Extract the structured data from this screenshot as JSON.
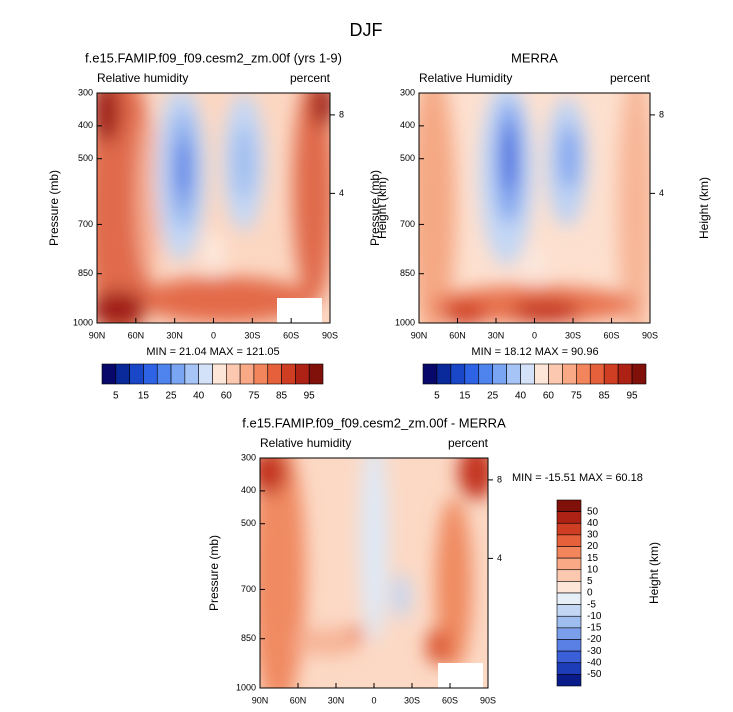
{
  "title": "DJF",
  "chart_data": [
    {
      "type": "contour",
      "title": "f.e15.FAMIP.f09_f09.cesm2_zm.00f (yrs 1-9)",
      "left_label": "Relative humidity",
      "right_label": "percent",
      "ylabel": "Pressure (mb)",
      "y2label": "Height (km)",
      "annotation": "MIN = 21.04  MAX = 121.05",
      "xlim": [
        90,
        -90
      ],
      "xticks": [
        {
          "value": 90,
          "label": "90N"
        },
        {
          "value": 60,
          "label": "60N"
        },
        {
          "value": 30,
          "label": "30N"
        },
        0,
        {
          "value": -30,
          "label": "30S"
        },
        {
          "value": -60,
          "label": "60S"
        },
        {
          "value": -90,
          "label": "90S"
        }
      ],
      "ylim": [
        1000,
        300
      ],
      "yticks": [
        300,
        400,
        500,
        700,
        850,
        1000
      ],
      "y2lim": [
        0,
        9.6
      ],
      "y2ticks": [
        8,
        4
      ],
      "colorbar_ticks": [
        5,
        15,
        25,
        40,
        60,
        75,
        85,
        95
      ],
      "colorbar_colors": [
        "#08086b",
        "#0a2a9c",
        "#1a46c8",
        "#2e63e6",
        "#4f84ee",
        "#7aa5f2",
        "#a6c4f5",
        "#d3e2f8",
        "#fde6d8",
        "#fcc9b0",
        "#f9a985",
        "#f3855c",
        "#e6603b",
        "#cf3d23",
        "#ad2214",
        "#80100a"
      ]
    },
    {
      "type": "contour",
      "title": "MERRA",
      "left_label": "Relative Humidity",
      "right_label": "percent",
      "ylabel": "Pressure (mb)",
      "y2label": "Height (km)",
      "annotation": "MIN = 18.12  MAX = 90.96",
      "xlim": [
        90,
        -90
      ],
      "xticks": [
        {
          "value": 90,
          "label": "90N"
        },
        {
          "value": 60,
          "label": "60N"
        },
        {
          "value": 30,
          "label": "30N"
        },
        0,
        {
          "value": -30,
          "label": "30S"
        },
        {
          "value": -60,
          "label": "60S"
        },
        {
          "value": -90,
          "label": "90S"
        }
      ],
      "ylim": [
        1000,
        300
      ],
      "yticks": [
        300,
        400,
        500,
        700,
        850,
        1000
      ],
      "y2lim": [
        0,
        9.6
      ],
      "y2ticks": [
        8,
        4
      ],
      "colorbar_ticks": [
        5,
        15,
        25,
        40,
        60,
        75,
        85,
        95
      ],
      "colorbar_colors": [
        "#08086b",
        "#0a2a9c",
        "#1a46c8",
        "#2e63e6",
        "#4f84ee",
        "#7aa5f2",
        "#a6c4f5",
        "#d3e2f8",
        "#fde6d8",
        "#fcc9b0",
        "#f9a985",
        "#f3855c",
        "#e6603b",
        "#cf3d23",
        "#ad2214",
        "#80100a"
      ]
    },
    {
      "type": "contour",
      "title": "f.e15.FAMIP.f09_f09.cesm2_zm.00f - MERRA",
      "left_label": "Relative humidity",
      "right_label": "percent",
      "ylabel": "Pressure (mb)",
      "y2label": "Height (km)",
      "annotation": "MIN = -15.51  MAX = 60.18",
      "xlim": [
        90,
        -90
      ],
      "xticks": [
        {
          "value": 90,
          "label": "90N"
        },
        {
          "value": 60,
          "label": "60N"
        },
        {
          "value": 30,
          "label": "30N"
        },
        0,
        {
          "value": -30,
          "label": "30S"
        },
        {
          "value": -60,
          "label": "60S"
        },
        {
          "value": -90,
          "label": "90S"
        }
      ],
      "ylim": [
        1000,
        300
      ],
      "yticks": [
        300,
        400,
        500,
        700,
        850,
        1000
      ],
      "y2lim": [
        0,
        9.6
      ],
      "y2ticks": [
        8,
        4
      ],
      "colorbar_ticks": [
        50,
        40,
        30,
        20,
        15,
        10,
        5,
        0,
        -5,
        -10,
        -15,
        -20,
        -30,
        -40,
        -50
      ],
      "colorbar_colors": [
        "#80100a",
        "#ad2214",
        "#cf3d23",
        "#e6603b",
        "#f3855c",
        "#f9a985",
        "#fcc9b0",
        "#fde6d8",
        "#e6eef8",
        "#c3d6f3",
        "#a0bdf0",
        "#7c9fec",
        "#5a80e6",
        "#3a5fd8",
        "#1c3cb8",
        "#0a1c8a"
      ]
    }
  ]
}
